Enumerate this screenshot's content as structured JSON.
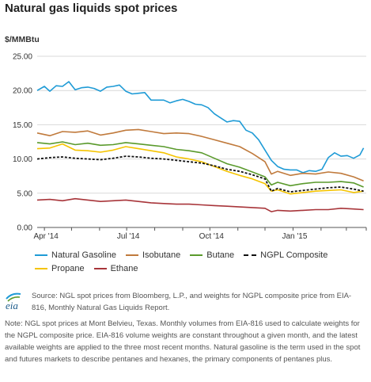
{
  "page": {
    "title": "Natural gas liquids spot prices",
    "unit_label": "$/MMBtu",
    "source": "Source: NGL spot prices from Bloomberg, L.P., and weights for NGPL composite price from EIA-816, Monthly Natural Gas Liquids Report.",
    "note": "Note: NGL spot prices at Mont Belvieu, Texas. Monthly volumes from EIA-816 used to calculate weights for the NGPL composite price. EIA-816 volume weights are constant throughout a given month, and the latest available weights are applied to the three most recent months. Natural gasoline is the term used in the spot and futures markets to describe pentanes and hexanes, the primary components of pentanes plus.",
    "logo_text": "eia"
  },
  "chart_data": {
    "type": "line",
    "title": "Natural gas liquids spot prices",
    "ylabel": "$/MMBtu",
    "ylim": [
      0,
      25
    ],
    "yticks": [
      0,
      5,
      10,
      15,
      20,
      25
    ],
    "ytick_labels": [
      "0.00",
      "5.00",
      "10.00",
      "15.00",
      "20.00",
      "25.00"
    ],
    "xlim": [
      "2014-03-24",
      "2015-03-23"
    ],
    "xticks": [
      "2014-04-01",
      "2014-07-01",
      "2014-10-01",
      "2015-01-01"
    ],
    "xtick_labels": [
      "Apr '14",
      "Jul '14",
      "Oct '14",
      "Jan '15"
    ],
    "extra_month_tick": "2015-04-01",
    "grid": "horizontal",
    "legend": "bottom",
    "series": [
      {
        "name": "Natural Gasoline",
        "color": "#1f9bd6",
        "dashed": false,
        "x": [
          "2014-03-24",
          "2014-04-01",
          "2014-04-07",
          "2014-04-14",
          "2014-04-21",
          "2014-04-28",
          "2014-05-05",
          "2014-05-12",
          "2014-05-19",
          "2014-05-26",
          "2014-06-02",
          "2014-06-09",
          "2014-06-16",
          "2014-06-23",
          "2014-06-30",
          "2014-07-07",
          "2014-07-14",
          "2014-07-21",
          "2014-07-28",
          "2014-08-04",
          "2014-08-11",
          "2014-08-18",
          "2014-08-25",
          "2014-09-01",
          "2014-09-08",
          "2014-09-15",
          "2014-09-22",
          "2014-09-29",
          "2014-10-06",
          "2014-10-13",
          "2014-10-20",
          "2014-10-27",
          "2014-11-03",
          "2014-11-10",
          "2014-11-17",
          "2014-11-24",
          "2014-12-01",
          "2014-12-08",
          "2014-12-15",
          "2014-12-22",
          "2014-12-29",
          "2015-01-05",
          "2015-01-12",
          "2015-01-19",
          "2015-01-26",
          "2015-02-02",
          "2015-02-09",
          "2015-02-16",
          "2015-02-23",
          "2015-03-02",
          "2015-03-09",
          "2015-03-16",
          "2015-03-20"
        ],
        "values": [
          20.0,
          20.6,
          19.9,
          20.7,
          20.6,
          21.3,
          20.1,
          20.4,
          20.5,
          20.3,
          19.9,
          20.5,
          20.6,
          20.8,
          19.9,
          19.5,
          19.6,
          19.7,
          18.6,
          18.6,
          18.6,
          18.2,
          18.5,
          18.7,
          18.4,
          18.0,
          17.9,
          17.5,
          16.6,
          16.0,
          15.4,
          15.6,
          15.5,
          14.2,
          13.8,
          12.8,
          11.3,
          9.8,
          8.9,
          8.5,
          8.4,
          8.4,
          8.0,
          8.3,
          8.2,
          8.5,
          10.2,
          10.9,
          10.4,
          10.5,
          10.1,
          10.6,
          11.6
        ]
      },
      {
        "name": "Isobutane",
        "color": "#c07a3c",
        "dashed": false,
        "x": [
          "2014-03-24",
          "2014-04-07",
          "2014-04-21",
          "2014-05-05",
          "2014-05-19",
          "2014-06-02",
          "2014-06-16",
          "2014-06-30",
          "2014-07-14",
          "2014-07-28",
          "2014-08-11",
          "2014-08-25",
          "2014-09-08",
          "2014-09-22",
          "2014-10-06",
          "2014-10-20",
          "2014-11-03",
          "2014-11-17",
          "2014-12-01",
          "2014-12-08",
          "2014-12-15",
          "2014-12-29",
          "2015-01-12",
          "2015-01-26",
          "2015-02-09",
          "2015-02-23",
          "2015-03-09",
          "2015-03-20"
        ],
        "values": [
          13.8,
          13.4,
          14.0,
          13.9,
          14.1,
          13.5,
          13.8,
          14.2,
          14.3,
          14.0,
          13.7,
          13.8,
          13.7,
          13.3,
          12.8,
          12.3,
          11.8,
          10.8,
          9.6,
          7.8,
          8.2,
          7.6,
          7.9,
          7.8,
          8.1,
          7.9,
          7.4,
          6.8
        ]
      },
      {
        "name": "Butane",
        "color": "#5a9a2c",
        "dashed": false,
        "x": [
          "2014-03-24",
          "2014-04-07",
          "2014-04-21",
          "2014-05-05",
          "2014-05-19",
          "2014-06-02",
          "2014-06-16",
          "2014-06-30",
          "2014-07-14",
          "2014-07-28",
          "2014-08-11",
          "2014-08-25",
          "2014-09-08",
          "2014-09-22",
          "2014-10-06",
          "2014-10-20",
          "2014-11-03",
          "2014-11-17",
          "2014-12-01",
          "2014-12-08",
          "2014-12-15",
          "2014-12-29",
          "2015-01-12",
          "2015-01-26",
          "2015-02-09",
          "2015-02-23",
          "2015-03-09",
          "2015-03-20"
        ],
        "values": [
          12.4,
          12.2,
          12.5,
          12.1,
          12.3,
          12.0,
          12.1,
          12.4,
          12.2,
          12.0,
          11.8,
          11.4,
          11.2,
          10.9,
          10.1,
          9.3,
          8.8,
          8.1,
          7.4,
          6.2,
          6.6,
          6.1,
          6.4,
          6.6,
          6.6,
          6.7,
          6.5,
          5.9
        ]
      },
      {
        "name": "NGPL Composite",
        "color": "#111111",
        "dashed": true,
        "x": [
          "2014-03-24",
          "2014-04-07",
          "2014-04-21",
          "2014-05-05",
          "2014-05-19",
          "2014-06-02",
          "2014-06-16",
          "2014-06-30",
          "2014-07-14",
          "2014-07-28",
          "2014-08-11",
          "2014-08-25",
          "2014-09-08",
          "2014-09-22",
          "2014-10-06",
          "2014-10-20",
          "2014-11-03",
          "2014-11-17",
          "2014-12-01",
          "2014-12-08",
          "2014-12-15",
          "2014-12-29",
          "2015-01-12",
          "2015-01-26",
          "2015-02-09",
          "2015-02-23",
          "2015-03-09",
          "2015-03-20"
        ],
        "values": [
          10.0,
          10.2,
          10.3,
          10.1,
          10.0,
          9.9,
          10.1,
          10.4,
          10.3,
          10.1,
          10.0,
          9.8,
          9.6,
          9.4,
          9.0,
          8.5,
          8.2,
          7.7,
          7.1,
          5.3,
          5.7,
          5.2,
          5.4,
          5.6,
          5.8,
          5.9,
          5.6,
          5.3
        ]
      },
      {
        "name": "Propane",
        "color": "#f5c400",
        "dashed": false,
        "x": [
          "2014-03-24",
          "2014-04-07",
          "2014-04-21",
          "2014-05-05",
          "2014-05-19",
          "2014-06-02",
          "2014-06-16",
          "2014-06-30",
          "2014-07-14",
          "2014-07-28",
          "2014-08-11",
          "2014-08-25",
          "2014-09-08",
          "2014-09-22",
          "2014-10-06",
          "2014-10-20",
          "2014-11-03",
          "2014-11-17",
          "2014-12-01",
          "2014-12-08",
          "2014-12-15",
          "2014-12-29",
          "2015-01-12",
          "2015-01-26",
          "2015-02-09",
          "2015-02-23",
          "2015-03-09",
          "2015-03-20"
        ],
        "values": [
          11.5,
          11.6,
          12.2,
          11.3,
          11.2,
          11.0,
          11.3,
          11.8,
          11.5,
          11.2,
          10.9,
          10.3,
          10.0,
          9.6,
          8.9,
          8.2,
          7.6,
          7.1,
          6.4,
          5.3,
          5.5,
          4.9,
          5.1,
          5.3,
          5.4,
          5.5,
          5.1,
          5.3
        ]
      },
      {
        "name": "Ethane",
        "color": "#a8353a",
        "dashed": false,
        "x": [
          "2014-03-24",
          "2014-04-07",
          "2014-04-21",
          "2014-05-05",
          "2014-05-19",
          "2014-06-02",
          "2014-06-16",
          "2014-06-30",
          "2014-07-14",
          "2014-07-28",
          "2014-08-11",
          "2014-08-25",
          "2014-09-08",
          "2014-09-22",
          "2014-10-06",
          "2014-10-20",
          "2014-11-03",
          "2014-11-17",
          "2014-12-01",
          "2014-12-08",
          "2014-12-15",
          "2014-12-29",
          "2015-01-12",
          "2015-01-26",
          "2015-02-09",
          "2015-02-23",
          "2015-03-09",
          "2015-03-20"
        ],
        "values": [
          4.0,
          4.1,
          3.9,
          4.2,
          4.0,
          3.8,
          3.9,
          4.0,
          3.8,
          3.6,
          3.5,
          3.4,
          3.4,
          3.3,
          3.2,
          3.1,
          3.0,
          2.9,
          2.8,
          2.3,
          2.5,
          2.4,
          2.5,
          2.6,
          2.6,
          2.8,
          2.7,
          2.6
        ]
      }
    ]
  }
}
